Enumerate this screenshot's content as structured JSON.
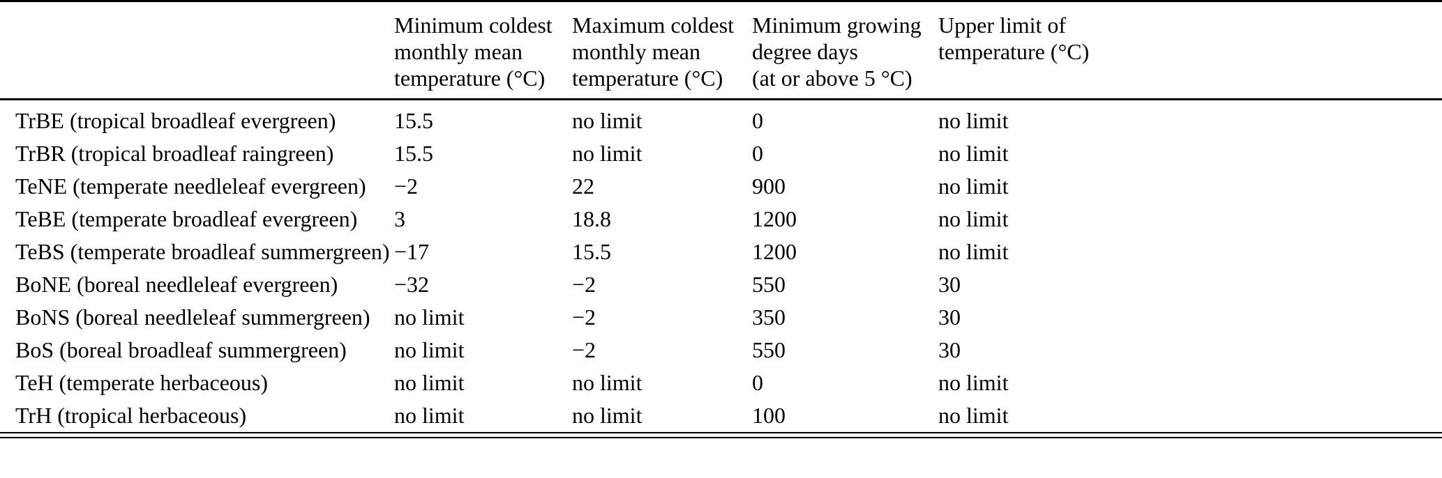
{
  "colors": {
    "background": "#ffffff",
    "text": "#000000",
    "rule": "#000000"
  },
  "table": {
    "columns": [
      {
        "id": "pft",
        "lines": [
          ""
        ]
      },
      {
        "id": "min-coldest-monthly-mean-temperature",
        "lines": [
          "Minimum coldest",
          "monthly mean",
          "temperature (°C)"
        ]
      },
      {
        "id": "max-coldest-monthly-mean-temperature",
        "lines": [
          "Maximum coldest",
          "monthly mean",
          "temperature (°C)"
        ]
      },
      {
        "id": "min-growing-degree-days",
        "lines": [
          "Minimum growing",
          "degree days",
          "(at or above 5 °C)"
        ]
      },
      {
        "id": "upper-limit-of-temperature",
        "lines": [
          "Upper limit of",
          "temperature (°C)"
        ]
      }
    ],
    "rows": [
      {
        "pft": "TrBE (tropical broadleaf evergreen)",
        "values": [
          "15.5",
          "no limit",
          "0",
          "no limit"
        ]
      },
      {
        "pft": "TrBR (tropical broadleaf raingreen)",
        "values": [
          "15.5",
          "no limit",
          "0",
          "no limit"
        ]
      },
      {
        "pft": "TeNE (temperate needleleaf evergreen)",
        "values": [
          "−2",
          "22",
          "900",
          "no limit"
        ]
      },
      {
        "pft": "TeBE (temperate broadleaf evergreen)",
        "values": [
          "3",
          "18.8",
          "1200",
          "no limit"
        ]
      },
      {
        "pft": "TeBS (temperate broadleaf summergreen)",
        "values": [
          "−17",
          "15.5",
          "1200",
          "no limit"
        ]
      },
      {
        "pft": "BoNE (boreal needleleaf evergreen)",
        "values": [
          "−32",
          "−2",
          "550",
          "30"
        ]
      },
      {
        "pft": "BoNS (boreal needleleaf summergreen)",
        "values": [
          "no limit",
          "−2",
          "350",
          "30"
        ]
      },
      {
        "pft": "BoS (boreal broadleaf summergreen)",
        "values": [
          "no limit",
          "−2",
          "550",
          "30"
        ]
      },
      {
        "pft": "TeH (temperate herbaceous)",
        "values": [
          "no limit",
          "no limit",
          "0",
          "no limit"
        ]
      },
      {
        "pft": "TrH (tropical herbaceous)",
        "values": [
          "no limit",
          "no limit",
          "100",
          "no limit"
        ]
      }
    ]
  }
}
